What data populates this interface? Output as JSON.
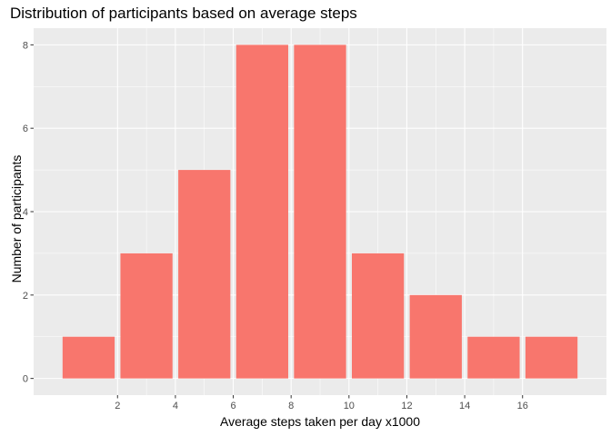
{
  "chart_data": {
    "type": "bar",
    "title": "Distribution of participants based on average steps",
    "xlabel": "Average steps taken per day x1000",
    "ylabel": "Number of participants",
    "bins": [
      {
        "x0": 0,
        "x1": 2,
        "value": 1
      },
      {
        "x0": 2,
        "x1": 4,
        "value": 3
      },
      {
        "x0": 4,
        "x1": 6,
        "value": 5
      },
      {
        "x0": 6,
        "x1": 8,
        "value": 8
      },
      {
        "x0": 8,
        "x1": 10,
        "value": 8
      },
      {
        "x0": 10,
        "x1": 12,
        "value": 3
      },
      {
        "x0": 12,
        "x1": 14,
        "value": 2
      },
      {
        "x0": 14,
        "x1": 16,
        "value": 1
      },
      {
        "x0": 16,
        "x1": 18,
        "value": 1
      }
    ],
    "x_ticks": [
      2,
      4,
      6,
      8,
      10,
      12,
      14,
      16
    ],
    "y_ticks": [
      0,
      2,
      4,
      6,
      8
    ],
    "xlim": [
      -0.9,
      18.9
    ],
    "ylim": [
      -0.4,
      8.4
    ],
    "grid": true,
    "legend": "none",
    "colors": {
      "bar": "#F8766D",
      "panel": "#EBEBEB",
      "grid": "#FFFFFF",
      "tick_text": "#4D4D4D"
    }
  }
}
